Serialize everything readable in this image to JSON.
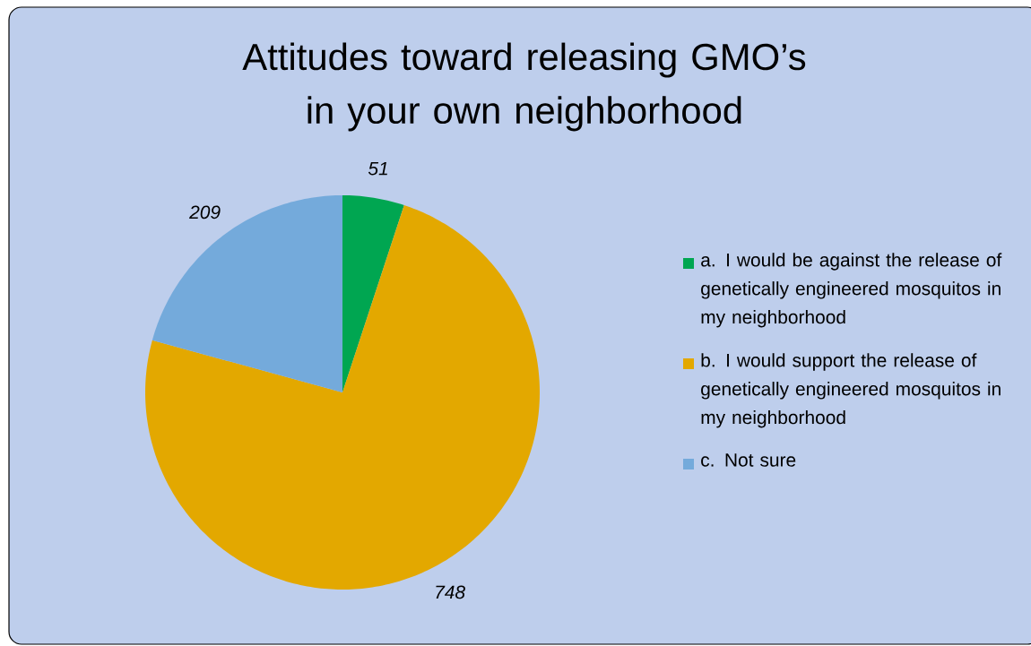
{
  "chart_data": {
    "type": "pie",
    "title": "Attitudes toward releasing GMO’s in your own neighborhood",
    "categories": [
      "a. I would be against the release of genetically engineered mosquitos in my neighborhood",
      "b. I would support the release of genetically engineered mosquitos in my neighborhood",
      "c. Not sure"
    ],
    "values": [
      51,
      748,
      209
    ],
    "colors": [
      "#00a651",
      "#e3a800",
      "#74aadb"
    ],
    "data_labels": true,
    "legend": "right"
  }
}
